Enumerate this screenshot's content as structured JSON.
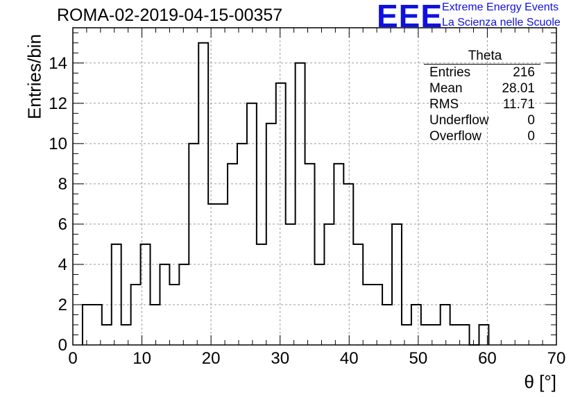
{
  "header": {
    "title": "ROMA-02-2019-04-15-00357",
    "logo_text": "EEE",
    "logo_line1": "Extreme Energy Events",
    "logo_line2": "La Scienza nelle Scuole"
  },
  "stats_box": {
    "name": "Theta",
    "rows": [
      {
        "label": "Entries",
        "value": "216"
      },
      {
        "label": "Mean",
        "value": "28.01"
      },
      {
        "label": "RMS",
        "value": "11.71"
      },
      {
        "label": "Underflow",
        "value": "0"
      },
      {
        "label": "Overflow",
        "value": "0"
      }
    ]
  },
  "colors": {
    "line": "#000000",
    "grid": "#9a9a9a",
    "logo": "#1010e0"
  },
  "chart_data": {
    "type": "bar",
    "style": "step histogram",
    "title": "ROMA-02-2019-04-15-00357",
    "xlabel": "θ [°]",
    "ylabel": "Entries/bin",
    "xlim": [
      0,
      70
    ],
    "ylim": [
      0,
      15.75
    ],
    "grid": true,
    "x_ticks": [
      0,
      10,
      20,
      30,
      40,
      50,
      60,
      70
    ],
    "y_ticks": [
      0,
      2,
      4,
      6,
      8,
      10,
      12,
      14
    ],
    "bin_edges": [
      1.4,
      2.8,
      4.2,
      5.6,
      7.0,
      8.4,
      9.8,
      11.2,
      12.6,
      14.0,
      15.4,
      16.8,
      18.2,
      19.6,
      21.0,
      22.4,
      23.8,
      25.2,
      26.6,
      28.0,
      29.4,
      30.8,
      32.2,
      33.6,
      35.0,
      36.4,
      37.8,
      39.2,
      40.6,
      42.0,
      43.4,
      44.8,
      46.2,
      47.6,
      49.0,
      50.4,
      51.8,
      53.2,
      54.6,
      56.0,
      57.4,
      58.8,
      60.2
    ],
    "values": [
      2,
      2,
      1,
      5,
      1,
      3,
      5,
      2,
      4,
      3,
      4,
      10,
      15,
      7,
      7,
      9,
      10,
      12,
      5,
      11,
      13,
      6,
      14,
      9,
      4,
      6,
      9,
      8,
      5,
      3,
      3,
      2,
      6,
      1,
      2,
      1,
      1,
      2,
      1,
      1,
      0,
      1
    ]
  }
}
